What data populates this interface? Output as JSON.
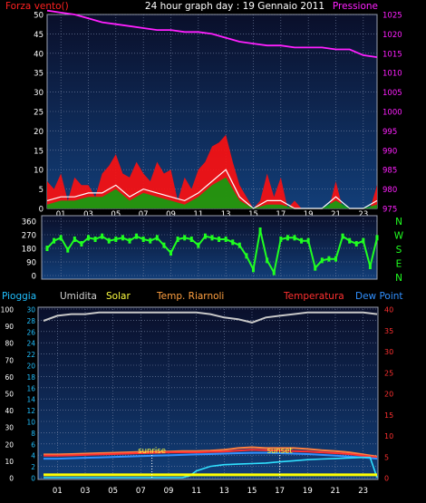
{
  "header": {
    "title": "24 hour graph day : 19 Gennaio 2011"
  },
  "colors": {
    "wind_label": "#ff2020",
    "pressure_label": "#ff20ff",
    "wind_series": "#ff1010",
    "gust_series": "#ffffff",
    "avg_wind_series": "#10a010",
    "pressure_series": "#ff20ff",
    "direction_series": "#20ff20",
    "rain_label": "#20c0ff",
    "humidity_label": "#d0d0d0",
    "solar_label": "#ffff40",
    "temp_roof_label": "#ffa040",
    "temperature_label": "#ff3030",
    "dew_label": "#3090ff",
    "humidity_series": "#c8c8c8",
    "temperature_series": "#ff3030",
    "dew_series": "#3090ff",
    "rain_series": "#30e0ff",
    "solar_series": "#ffff00",
    "temp_roof_series": "#ff8040",
    "panel_top": "#0a0f2a",
    "panel_bottom": "#123e78"
  },
  "chart_data": [
    {
      "type": "line",
      "title": "24 hour graph day : 19 Gennaio 2011",
      "left_axis_label": "Forza vento()",
      "right_axis_label": "Pressione",
      "x_ticks": [
        "01",
        "03",
        "05",
        "07",
        "09",
        "11",
        "13",
        "15",
        "17",
        "19",
        "21",
        "23"
      ],
      "xlim": [
        0,
        24
      ],
      "ylim_left": [
        0,
        50
      ],
      "yticks_left": [
        "0",
        "5",
        "10",
        "15",
        "20",
        "25",
        "30",
        "35",
        "40",
        "45",
        "50"
      ],
      "ylim_right": [
        975,
        1025
      ],
      "yticks_right": [
        "975",
        "980",
        "985",
        "990",
        "995",
        "1000",
        "1005",
        "1010",
        "1015",
        "1020",
        "1025"
      ],
      "grid": true,
      "series": [
        {
          "x": [
            0,
            1,
            2,
            3,
            4,
            5,
            6,
            7,
            8,
            9,
            10,
            11,
            12,
            13,
            14,
            15,
            16,
            17,
            18,
            19,
            20,
            21,
            22,
            23,
            24
          ],
          "y": [
            1026,
            1025.5,
            1025,
            1024,
            1023,
            1022.5,
            1022,
            1021.5,
            1021,
            1021,
            1020.5,
            1020.5,
            1020,
            1019,
            1018,
            1017.5,
            1017,
            1017,
            1016.5,
            1016.5,
            1016.5,
            1016,
            1016,
            1014.5,
            1014
          ],
          "axis": "right"
        },
        {
          "x": [
            0,
            0.5,
            1,
            1.5,
            2,
            2.5,
            3,
            3.5,
            4,
            4.5,
            5,
            5.5,
            6,
            6.5,
            7,
            7.5,
            8,
            8.5,
            9,
            9.5,
            10,
            10.5,
            11,
            11.5,
            12,
            12.5,
            13,
            13.5,
            14,
            14.5,
            15,
            15.5,
            16,
            16.5,
            17,
            17.5,
            18,
            18.5,
            19,
            19.5,
            20,
            20.5,
            21,
            21.5,
            22,
            22.5,
            23,
            23.5,
            24
          ],
          "y": [
            7,
            5,
            9,
            2,
            8,
            6,
            6,
            3,
            9,
            11,
            14,
            9,
            8,
            12,
            9,
            7,
            12,
            9,
            10,
            2,
            8,
            5,
            10,
            12,
            16,
            17,
            19,
            12,
            6,
            3,
            0,
            2,
            9,
            3,
            8,
            0,
            2,
            0,
            0,
            0,
            0,
            0,
            7,
            0,
            0,
            0,
            0,
            0,
            6
          ],
          "axis": "left"
        },
        {
          "x": [
            0,
            1,
            2,
            3,
            4,
            5,
            6,
            7,
            8,
            9,
            10,
            11,
            12,
            13,
            14,
            15,
            16,
            17,
            18,
            19,
            20,
            21,
            22,
            23,
            24
          ],
          "y": [
            2,
            3,
            3,
            4,
            4,
            6,
            3,
            5,
            4,
            3,
            2,
            4,
            7,
            10,
            3,
            0,
            2,
            2,
            0,
            0,
            0,
            3,
            0,
            0,
            2
          ],
          "axis": "left"
        },
        {
          "x": [
            0,
            1,
            2,
            3,
            4,
            5,
            6,
            7,
            8,
            9,
            10,
            11,
            12,
            13,
            14,
            15,
            16,
            17,
            18,
            19,
            20,
            21,
            22,
            23,
            24
          ],
          "y": [
            1,
            2,
            2,
            3,
            3,
            5,
            2,
            4,
            3,
            2,
            1,
            3,
            6,
            8,
            2,
            0,
            1,
            1,
            0,
            0,
            0,
            2,
            0,
            0,
            1
          ],
          "axis": "left"
        }
      ]
    },
    {
      "type": "line",
      "right_axis_labels": [
        "N",
        "W",
        "S",
        "E",
        "N"
      ],
      "x_ticks": [
        "01",
        "03",
        "05",
        "07",
        "09",
        "11",
        "13",
        "15",
        "17",
        "19",
        "21",
        "23"
      ],
      "xlim": [
        0,
        24
      ],
      "ylim": [
        0,
        360
      ],
      "yticks": [
        "0",
        "90",
        "180",
        "270",
        "360"
      ],
      "grid": true,
      "series": [
        {
          "x": [
            0,
            0.5,
            1,
            1.5,
            2,
            2.5,
            3,
            3.5,
            4,
            4.5,
            5,
            5.5,
            6,
            6.5,
            7,
            7.5,
            8,
            8.5,
            9,
            9.5,
            10,
            10.5,
            11,
            11.5,
            12,
            12.5,
            13,
            13.5,
            14,
            14.5,
            15,
            15.5,
            16,
            16.5,
            17,
            17.5,
            18,
            18.5,
            19,
            19.5,
            20,
            20.5,
            21,
            21.5,
            22,
            22.5,
            23,
            23.5,
            24
          ],
          "y": [
            180,
            230,
            250,
            170,
            240,
            210,
            250,
            240,
            260,
            230,
            240,
            250,
            230,
            260,
            240,
            230,
            250,
            200,
            150,
            240,
            250,
            240,
            200,
            260,
            250,
            240,
            240,
            220,
            200,
            130,
            40,
            300,
            100,
            20,
            240,
            250,
            250,
            230,
            230,
            50,
            100,
            110,
            110,
            260,
            230,
            210,
            230,
            60,
            250
          ]
        }
      ]
    },
    {
      "type": "line",
      "legend": [
        "Pioggia",
        "Umidita",
        "Solar",
        "Temp. Riarnoli",
        "Temperatura",
        "Dew Point"
      ],
      "x_ticks": [
        "01",
        "03",
        "05",
        "07",
        "09",
        "11",
        "13",
        "15",
        "17",
        "19",
        "21",
        "23"
      ],
      "xlim": [
        0,
        24
      ],
      "ylim_left": [
        0,
        100
      ],
      "yticks_left": [
        "0",
        "10",
        "20",
        "30",
        "40",
        "50",
        "60",
        "70",
        "80",
        "90",
        "100"
      ],
      "ylim_middle": [
        0,
        30
      ],
      "yticks_middle": [
        "0",
        "2",
        "4",
        "6",
        "8",
        "10",
        "12",
        "14",
        "16",
        "18",
        "20",
        "22",
        "24",
        "26",
        "28",
        "30"
      ],
      "ylim_right": [
        0,
        40
      ],
      "yticks_right": [
        "0",
        "5",
        "10",
        "15",
        "20",
        "25",
        "30",
        "35",
        "40"
      ],
      "grid": true,
      "annotations": [
        {
          "text": "sunrise",
          "x": 7.8
        },
        {
          "text": "sunset",
          "x": 17.0
        }
      ],
      "series": [
        {
          "x": [
            0,
            1,
            2,
            3,
            4,
            5,
            6,
            7,
            8,
            9,
            10,
            11,
            12,
            13,
            14,
            15,
            16,
            17,
            18,
            19,
            20,
            21,
            22,
            23,
            24
          ],
          "y": [
            93,
            96,
            97,
            97,
            98,
            98,
            98,
            98,
            98,
            98,
            98,
            98,
            97,
            95,
            94,
            92,
            95,
            96,
            97,
            98,
            98,
            98,
            98,
            98,
            97
          ],
          "axis": "left"
        },
        {
          "x": [
            0,
            1,
            2,
            3,
            4,
            5,
            6,
            7,
            8,
            9,
            10,
            11,
            12,
            13,
            14,
            15,
            16,
            17,
            18,
            19,
            20,
            21,
            22,
            23,
            24
          ],
          "y": [
            5.5,
            5.5,
            5.6,
            5.7,
            5.8,
            5.9,
            6.0,
            6.1,
            6.2,
            6.2,
            6.3,
            6.3,
            6.4,
            6.6,
            7.0,
            7.2,
            7.0,
            7.0,
            7.0,
            6.8,
            6.5,
            6.3,
            6.0,
            5.5,
            5.0
          ],
          "axis": "right"
        },
        {
          "x": [
            0,
            1,
            2,
            3,
            4,
            5,
            6,
            7,
            8,
            9,
            10,
            11,
            12,
            13,
            14,
            15,
            16,
            17,
            18,
            19,
            20,
            21,
            22,
            23,
            24
          ],
          "y": [
            5.2,
            5.2,
            5.3,
            5.4,
            5.5,
            5.6,
            5.7,
            5.8,
            5.9,
            6.0,
            6.0,
            6.0,
            6.1,
            6.2,
            6.4,
            6.6,
            6.5,
            6.4,
            6.3,
            6.2,
            6.0,
            5.8,
            5.6,
            5.2,
            4.8
          ],
          "axis": "right"
        },
        {
          "x": [
            0,
            1,
            2,
            3,
            4,
            5,
            6,
            7,
            8,
            9,
            10,
            11,
            12,
            13,
            14,
            15,
            16,
            17,
            18,
            19,
            20,
            21,
            22,
            23,
            24
          ],
          "y": [
            4.5,
            4.5,
            4.6,
            4.7,
            4.8,
            4.9,
            5.0,
            5.1,
            5.2,
            5.3,
            5.4,
            5.5,
            5.6,
            5.7,
            5.8,
            5.9,
            5.9,
            5.8,
            5.7,
            5.6,
            5.4,
            5.2,
            5.0,
            4.8,
            4.5
          ],
          "axis": "right"
        },
        {
          "x": [
            0,
            1,
            2,
            3,
            4,
            5,
            6,
            7,
            8,
            9,
            10,
            10.5,
            11,
            12,
            13,
            14,
            15,
            16,
            17,
            18,
            19,
            20,
            21,
            22,
            23,
            23.5,
            24
          ],
          "y": [
            0,
            0,
            0,
            0,
            0,
            0,
            0,
            0,
            0,
            0,
            0,
            0.3,
            1.2,
            2.0,
            2.3,
            2.4,
            2.5,
            2.6,
            2.8,
            3.0,
            3.2,
            3.3,
            3.4,
            3.5,
            3.6,
            3.6,
            0
          ],
          "axis": "middle"
        },
        {
          "x": [
            0,
            24
          ],
          "y": [
            0.5,
            0.5
          ],
          "axis": "middle"
        }
      ]
    }
  ]
}
